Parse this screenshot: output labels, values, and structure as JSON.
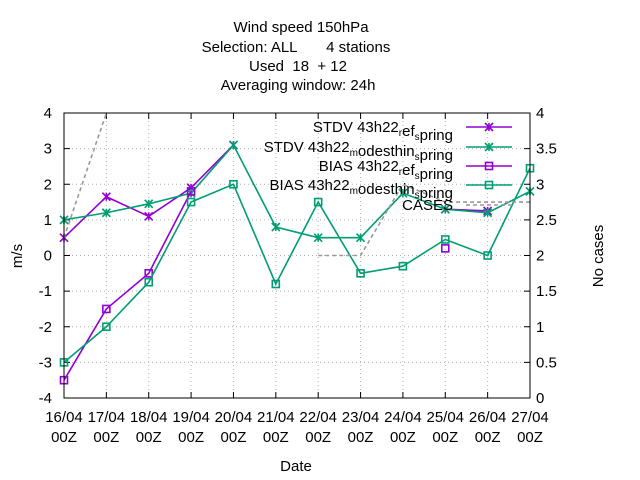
{
  "chart_data": {
    "type": "line",
    "title_lines": [
      "Wind speed 150hPa",
      "Selection: ALL       4 stations",
      "Used  18  + 12",
      "Averaging window: 24h"
    ],
    "xlabel": "Date",
    "ylabel": "m/s",
    "y2label": "No cases",
    "categories": [
      [
        "16/04",
        "00Z"
      ],
      [
        "17/04",
        "00Z"
      ],
      [
        "18/04",
        "00Z"
      ],
      [
        "19/04",
        "00Z"
      ],
      [
        "20/04",
        "00Z"
      ],
      [
        "21/04",
        "00Z"
      ],
      [
        "22/04",
        "00Z"
      ],
      [
        "23/04",
        "00Z"
      ],
      [
        "24/04",
        "00Z"
      ],
      [
        "25/04",
        "00Z"
      ],
      [
        "26/04",
        "00Z"
      ],
      [
        "27/04",
        "00Z"
      ]
    ],
    "ylim": [
      -4,
      4
    ],
    "yticks": [
      "-4",
      "-3",
      "-2",
      "-1",
      "0",
      "1",
      "2",
      "3",
      "4"
    ],
    "y2lim": [
      0,
      4
    ],
    "y2ticks": [
      "0",
      "0.5",
      "1",
      "1.5",
      "2",
      "2.5",
      "3",
      "3.5",
      "4"
    ],
    "grid": true,
    "legend_position": "top-right",
    "series": [
      {
        "name": "STDV 43h22_ref_spring",
        "legend_parts": [
          [
            "STDV 43h22",
            ""
          ],
          [
            "r",
            "sub"
          ],
          [
            "ef",
            ""
          ],
          [
            "s",
            "sub"
          ],
          [
            "pring",
            ""
          ]
        ],
        "color": "#9400d3",
        "marker": "x",
        "axis": "y",
        "values": [
          0.5,
          1.65,
          1.1,
          1.9,
          3.1,
          null,
          null,
          null,
          null,
          1.3,
          1.25,
          null
        ]
      },
      {
        "name": "STDV 43h22_modesthin_spring",
        "legend_parts": [
          [
            "STDV 43h22",
            ""
          ],
          [
            "m",
            "sub"
          ],
          [
            "odesthin",
            ""
          ],
          [
            "s",
            "sub"
          ],
          [
            "pring",
            ""
          ]
        ],
        "color": "#009e73",
        "marker": "x",
        "axis": "y",
        "values": [
          1.0,
          1.2,
          1.45,
          1.75,
          3.1,
          0.8,
          0.5,
          0.5,
          1.75,
          1.3,
          1.2,
          1.8
        ]
      },
      {
        "name": "BIAS 43h22_ref_spring",
        "legend_parts": [
          [
            "BIAS 43h22",
            ""
          ],
          [
            "r",
            "sub"
          ],
          [
            "ef",
            ""
          ],
          [
            "s",
            "sub"
          ],
          [
            "pring",
            ""
          ]
        ],
        "color": "#9400d3",
        "marker": "square",
        "axis": "y",
        "values": [
          -3.5,
          -1.5,
          -0.5,
          1.8,
          null,
          null,
          null,
          null,
          null,
          0.2,
          null,
          null
        ]
      },
      {
        "name": "BIAS 43h22_modesthin_spring",
        "legend_parts": [
          [
            "BIAS 43h22",
            ""
          ],
          [
            "m",
            "sub"
          ],
          [
            "odesthin",
            ""
          ],
          [
            "s",
            "sub"
          ],
          [
            "pring",
            ""
          ]
        ],
        "color": "#009e73",
        "marker": "square",
        "axis": "y",
        "values": [
          -3.0,
          -2.0,
          -0.75,
          1.5,
          2.0,
          -0.8,
          1.5,
          -0.5,
          -0.3,
          0.45,
          0.0,
          2.45
        ]
      },
      {
        "name": "CASES",
        "legend_parts": [
          [
            "CASES",
            ""
          ]
        ],
        "color": "#999999",
        "marker": "none",
        "dashed": true,
        "axis": "y2",
        "values": [
          2.25,
          4.0,
          null,
          null,
          null,
          null,
          2.0,
          2.0,
          3.0,
          2.75,
          2.75,
          2.75
        ]
      }
    ]
  }
}
